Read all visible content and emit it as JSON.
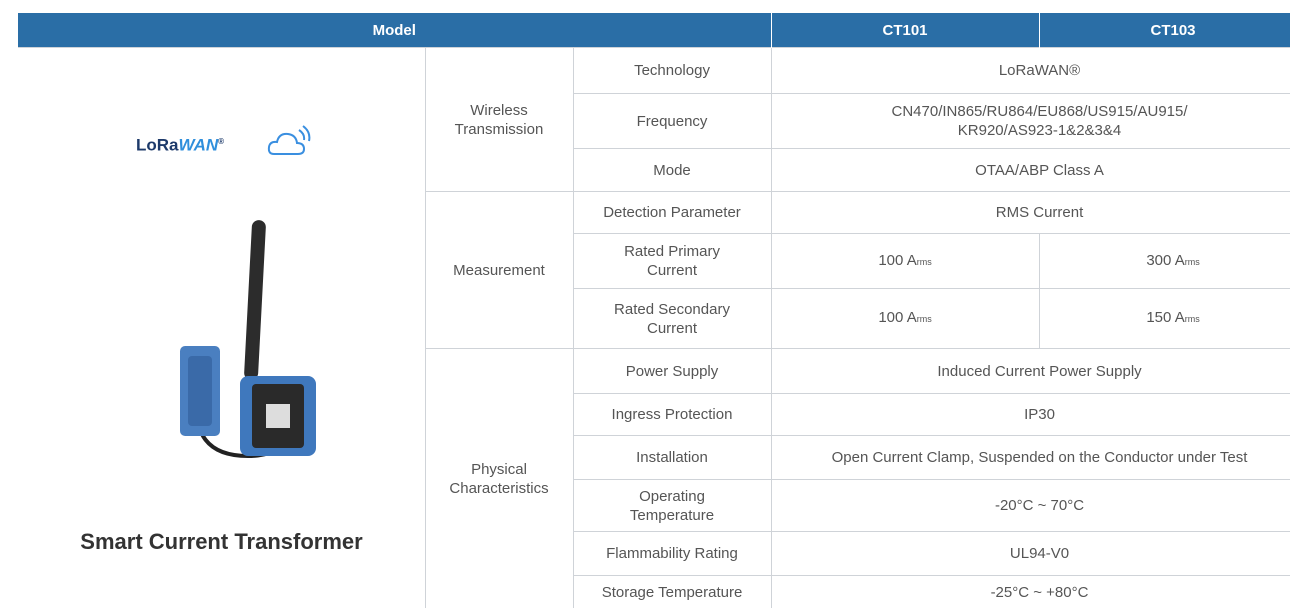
{
  "header": {
    "model": "Model",
    "columns": [
      "CT101",
      "CT103"
    ]
  },
  "product": {
    "logo": [
      "LoRa",
      "WAN",
      "®"
    ],
    "name": "Smart Current Transformer"
  },
  "groups": [
    {
      "label": [
        "Wireless",
        "Transmission"
      ],
      "rows": [
        {
          "parameter": "Technology",
          "value": "LoRaWAN®"
        },
        {
          "parameter": "Frequency",
          "value": [
            "CN470/IN865/RU864/EU868/US915/AU915/",
            "KR920/AS923-1&2&3&4"
          ]
        },
        {
          "parameter": "Mode",
          "value": "OTAA/ABP Class A"
        }
      ]
    },
    {
      "label": "Measurement",
      "rows": [
        {
          "parameter": "Detection Parameter",
          "value": "RMS Current"
        },
        {
          "parameter": [
            "Rated Primary",
            "Current"
          ],
          "values": [
            {
              "text": "100 A",
              "sub": "rms"
            },
            {
              "text": "300 A",
              "sub": "rms"
            }
          ]
        },
        {
          "parameter": [
            "Rated Secondary",
            "Current"
          ],
          "values": [
            {
              "text": "100 A",
              "sub": "rms"
            },
            {
              "text": "150 A",
              "sub": "rms"
            }
          ]
        }
      ]
    },
    {
      "label": [
        "Physical",
        "Characteristics"
      ],
      "rows": [
        {
          "parameter": "Power Supply",
          "value": "Induced Current Power Supply"
        },
        {
          "parameter": "Ingress Protection",
          "value": "IP30"
        },
        {
          "parameter": "Installation",
          "value": "Open Current Clamp, Suspended on the Conductor under Test"
        },
        {
          "parameter": [
            "Operating",
            "Temperature"
          ],
          "value": "-20°C ~ 70°C"
        },
        {
          "parameter": "Flammability Rating",
          "value": "UL94-V0"
        },
        {
          "parameter": "Storage Temperature",
          "value": "-25°C ~ +80°C"
        }
      ]
    }
  ]
}
